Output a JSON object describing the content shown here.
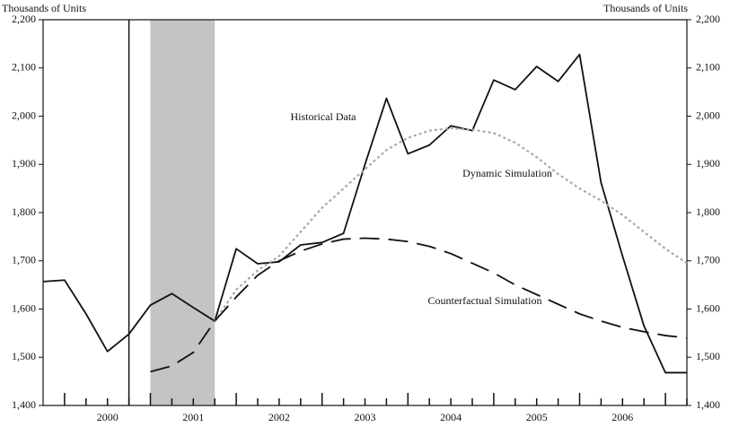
{
  "chart_data": {
    "type": "line",
    "y_label": "Thousands of Units",
    "y2_label": "Thousands of Units",
    "xlim": [
      1999.75,
      2007.25
    ],
    "xticks": [
      {
        "value": 2000.5,
        "label": "2000"
      },
      {
        "value": 2001.5,
        "label": "2001"
      },
      {
        "value": 2002.5,
        "label": "2002"
      },
      {
        "value": 2003.5,
        "label": "2003"
      },
      {
        "value": 2004.5,
        "label": "2004"
      },
      {
        "value": 2005.5,
        "label": "2005"
      },
      {
        "value": 2006.5,
        "label": "2006"
      }
    ],
    "ylim": [
      1400,
      2200
    ],
    "yticks": [
      {
        "value": 1400,
        "label": "1,400"
      },
      {
        "value": 1500,
        "label": "1,500"
      },
      {
        "value": 1600,
        "label": "1,600"
      },
      {
        "value": 1700,
        "label": "1,700"
      },
      {
        "value": 1800,
        "label": "1,800"
      },
      {
        "value": 1900,
        "label": "1,900"
      },
      {
        "value": 2000,
        "label": "2,000"
      },
      {
        "value": 2100,
        "label": "2,100"
      },
      {
        "value": 2200,
        "label": "2,200"
      }
    ],
    "y2lim": [
      1400,
      2200
    ],
    "y2ticks": [
      {
        "value": 1400,
        "label": "1,400"
      },
      {
        "value": 1500,
        "label": "1,500"
      },
      {
        "value": 1600,
        "label": "1,600"
      },
      {
        "value": 1700,
        "label": "1,700"
      },
      {
        "value": 1800,
        "label": "1,800"
      },
      {
        "value": 1900,
        "label": "1,900"
      },
      {
        "value": 2000,
        "label": "2,000"
      },
      {
        "value": 2100,
        "label": "2,100"
      },
      {
        "value": 2200,
        "label": "2,200"
      }
    ],
    "vline": 2000.75,
    "shaded": [
      2001.0,
      2001.75
    ],
    "series": [
      {
        "name": "Historical Data",
        "color": "#111111",
        "style": "solid",
        "x": [
          1999.75,
          2000.0,
          2000.25,
          2000.5,
          2000.75,
          2001.0,
          2001.25,
          2001.5,
          2001.75,
          2002.0,
          2002.25,
          2002.5,
          2002.75,
          2003.0,
          2003.25,
          2003.5,
          2003.75,
          2004.0,
          2004.25,
          2004.5,
          2004.75,
          2005.0,
          2005.25,
          2005.5,
          2005.75,
          2006.0,
          2006.25,
          2006.5,
          2006.75,
          2007.0,
          2007.25
        ],
        "values": [
          1657,
          1660,
          1590,
          1512,
          1548,
          1608,
          1632,
          1603,
          1575,
          1725,
          1694,
          1698,
          1733,
          1738,
          1757,
          1900,
          2037,
          1922,
          1940,
          1980,
          1970,
          2075,
          2055,
          2103,
          2072,
          2128,
          1862,
          1710,
          1565,
          1468,
          1468
        ]
      },
      {
        "name": "Dynamic Simulation",
        "color": "#aaaaaa",
        "style": "dotted",
        "x": [
          2001.75,
          2002.0,
          2002.25,
          2002.5,
          2002.75,
          2003.0,
          2003.25,
          2003.5,
          2003.75,
          2004.0,
          2004.25,
          2004.5,
          2004.75,
          2005.0,
          2005.25,
          2005.5,
          2005.75,
          2006.0,
          2006.25,
          2006.5,
          2006.75,
          2007.0,
          2007.25
        ],
        "values": [
          1575,
          1640,
          1680,
          1710,
          1760,
          1810,
          1850,
          1890,
          1930,
          1955,
          1970,
          1975,
          1972,
          1965,
          1945,
          1915,
          1880,
          1850,
          1825,
          1795,
          1760,
          1725,
          1695
        ]
      },
      {
        "name": "Counterfactual Simulation",
        "color": "#111111",
        "style": "dashed",
        "x": [
          2001.0,
          2001.25,
          2001.5,
          2001.75,
          2002.0,
          2002.25,
          2002.5,
          2002.75,
          2003.0,
          2003.25,
          2003.5,
          2003.75,
          2004.0,
          2004.25,
          2004.5,
          2004.75,
          2005.0,
          2005.25,
          2005.5,
          2005.75,
          2006.0,
          2006.25,
          2006.5,
          2006.75,
          2007.0,
          2007.25
        ],
        "values": [
          1470,
          1482,
          1510,
          1575,
          1625,
          1670,
          1700,
          1720,
          1735,
          1745,
          1747,
          1745,
          1740,
          1730,
          1715,
          1695,
          1675,
          1650,
          1630,
          1610,
          1590,
          1575,
          1562,
          1553,
          1545,
          1540
        ]
      }
    ]
  }
}
